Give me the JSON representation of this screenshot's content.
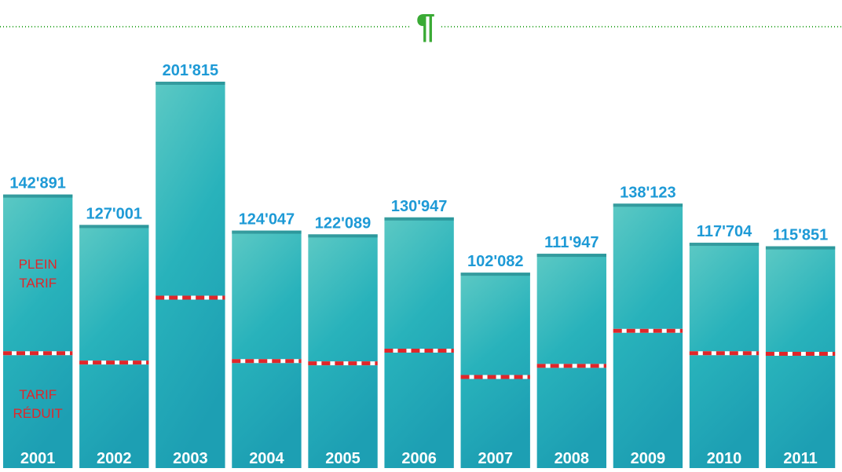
{
  "header": {
    "mark": "¶"
  },
  "chart_data": {
    "type": "bar",
    "categories": [
      "2001",
      "2002",
      "2003",
      "2004",
      "2005",
      "2006",
      "2007",
      "2008",
      "2009",
      "2010",
      "2011"
    ],
    "values": [
      142891,
      127001,
      201815,
      124047,
      122089,
      130947,
      102082,
      111947,
      138123,
      117704,
      115851
    ],
    "value_labels": [
      "142'891",
      "127'001",
      "201'815",
      "124'047",
      "122'089",
      "130'947",
      "102'082",
      "111'947",
      "138'123",
      "117'704",
      "115'851"
    ],
    "divider_values": [
      60000,
      55100,
      89000,
      55900,
      54700,
      61300,
      47600,
      53400,
      71700,
      60000,
      59700
    ],
    "segment_labels": [
      "PLEIN TARIF",
      "TARIF RÉDUIT"
    ],
    "color": "#2fb8bd",
    "divider_color": "#e0262a",
    "label_color": "#1e9ad6"
  }
}
